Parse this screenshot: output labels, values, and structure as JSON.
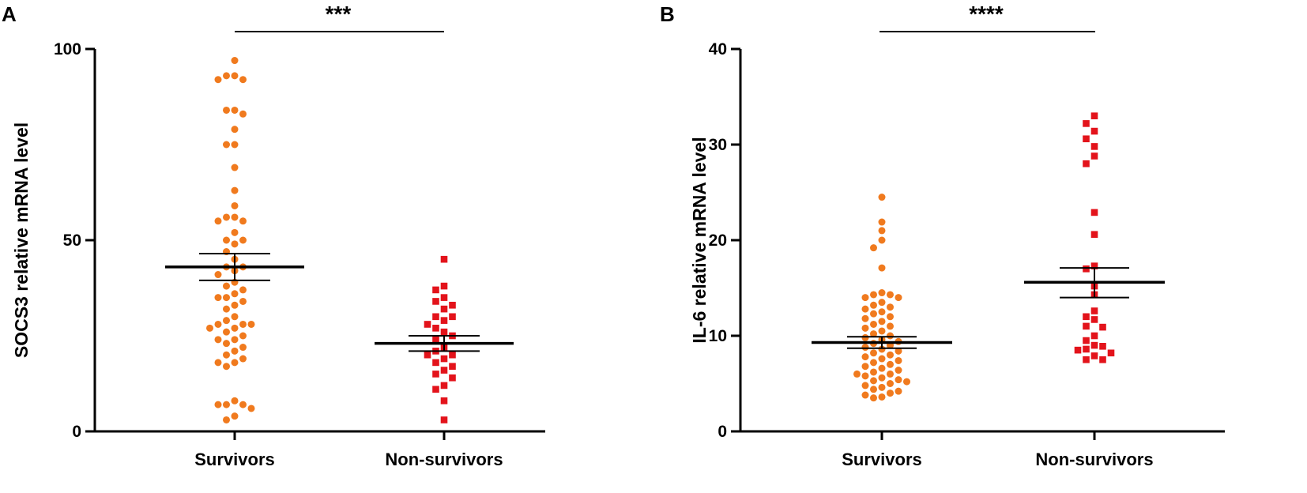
{
  "colors": {
    "survivors": "#F07A1E",
    "non_survivors": "#E3131B",
    "axis": "#000000"
  },
  "chart_data": [
    {
      "panel_label": "A",
      "type": "scatter",
      "ylabel": "SOCS3 relative mRNA level",
      "xlabel": "",
      "categories": [
        "Survivors",
        "Non-survivors"
      ],
      "ylim": [
        0,
        100
      ],
      "yticks": [
        0,
        50,
        100
      ],
      "significance": "***",
      "series": [
        {
          "name": "Survivors",
          "marker": "circle",
          "color": "#F07A1E",
          "mean": 43,
          "sem_low": 39.5,
          "sem_high": 46.5,
          "values": [
            97,
            93,
            93,
            92,
            92,
            84,
            84,
            83,
            79,
            75,
            75,
            69,
            63,
            59,
            56,
            56,
            55,
            55,
            52,
            50,
            50,
            49,
            47,
            45,
            43,
            43,
            42,
            41,
            39,
            38,
            37,
            36,
            35,
            35,
            34,
            33,
            32,
            30,
            29,
            28,
            28,
            28,
            27,
            27,
            26,
            25,
            24,
            24,
            23,
            22,
            21,
            20,
            19,
            18,
            18,
            17,
            8,
            7,
            7,
            7,
            6,
            4,
            3
          ]
        },
        {
          "name": "Non-survivors",
          "marker": "square",
          "color": "#E3131B",
          "mean": 23,
          "sem_low": 21,
          "sem_high": 25,
          "values": [
            45,
            38,
            37,
            35,
            34,
            33,
            32,
            30,
            30,
            29,
            28,
            27,
            26,
            25,
            24,
            22,
            21,
            20,
            20,
            19,
            18,
            17,
            16,
            15,
            14,
            12,
            11,
            8,
            3
          ]
        }
      ]
    },
    {
      "panel_label": "B",
      "type": "scatter",
      "ylabel": "IL-6 relative mRNA level",
      "xlabel": "",
      "categories": [
        "Survivors",
        "Non-survivors"
      ],
      "ylim": [
        0,
        40
      ],
      "yticks": [
        0,
        10,
        20,
        30,
        40
      ],
      "significance": "****",
      "series": [
        {
          "name": "Survivors",
          "marker": "circle",
          "color": "#F07A1E",
          "mean": 9.3,
          "sem_low": 8.7,
          "sem_high": 9.9,
          "values": [
            24.5,
            21.9,
            21.0,
            20.0,
            19.2,
            17.1,
            14.5,
            14.3,
            14.3,
            14.0,
            14.0,
            13.5,
            13.2,
            13.0,
            12.8,
            12.5,
            12.3,
            12.0,
            11.8,
            11.5,
            11.2,
            11.0,
            10.8,
            10.5,
            10.2,
            10.0,
            9.8,
            9.6,
            9.4,
            9.2,
            9.0,
            8.8,
            8.6,
            8.4,
            8.2,
            8.0,
            7.8,
            7.6,
            7.4,
            7.2,
            7.0,
            6.8,
            6.6,
            6.4,
            6.2,
            6.0,
            6.0,
            5.8,
            5.6,
            5.4,
            5.3,
            5.2,
            5.0,
            4.8,
            4.6,
            4.4,
            4.2,
            4.0,
            3.8,
            3.6,
            3.5
          ]
        },
        {
          "name": "Non-survivors",
          "marker": "square",
          "color": "#E3131B",
          "mean": 15.6,
          "sem_low": 14.0,
          "sem_high": 17.1,
          "values": [
            33.0,
            32.2,
            31.4,
            30.6,
            29.8,
            28.8,
            28.0,
            22.9,
            20.6,
            17.3,
            17.0,
            15.2,
            14.3,
            12.6,
            12.0,
            11.7,
            11.0,
            10.9,
            10.0,
            9.5,
            9.0,
            8.9,
            8.6,
            8.5,
            8.2,
            7.9,
            7.5,
            7.5
          ]
        }
      ]
    }
  ]
}
